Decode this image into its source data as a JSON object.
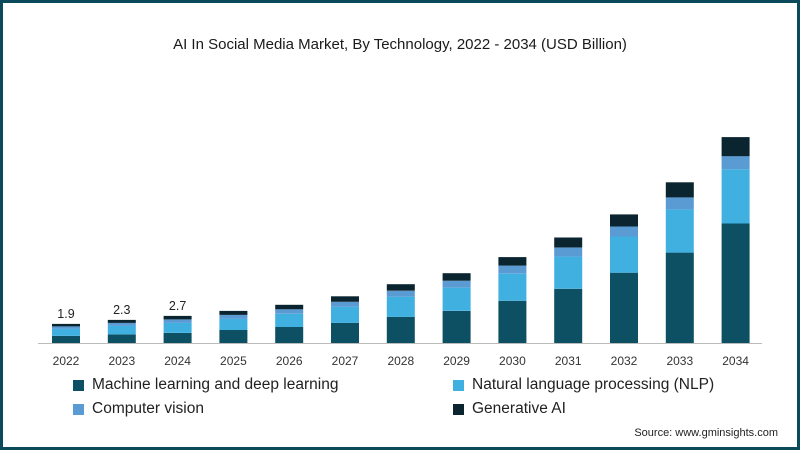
{
  "chart_data": {
    "type": "bar",
    "stacked": true,
    "title": "AI In Social Media Market, By Technology, 2022 - 2034 (USD Billion)",
    "categories": [
      "2022",
      "2023",
      "2024",
      "2025",
      "2026",
      "2027",
      "2028",
      "2029",
      "2030",
      "2031",
      "2032",
      "2033",
      "2034"
    ],
    "series": [
      {
        "name": "Machine learning and deep learning",
        "color": "#0d4f63",
        "values": [
          0.7,
          0.85,
          1.0,
          1.3,
          1.6,
          2.0,
          2.6,
          3.2,
          4.2,
          5.4,
          7.0,
          9.0,
          11.9
        ]
      },
      {
        "name": "Natural language processing (NLP)",
        "color": "#3fb0e0",
        "values": [
          0.7,
          0.85,
          1.0,
          1.1,
          1.3,
          1.6,
          2.0,
          2.3,
          2.7,
          3.2,
          3.6,
          4.3,
          5.4
        ]
      },
      {
        "name": "Computer vision",
        "color": "#5a9bd4",
        "values": [
          0.25,
          0.3,
          0.35,
          0.4,
          0.45,
          0.5,
          0.6,
          0.7,
          0.8,
          0.9,
          1.0,
          1.2,
          1.3
        ]
      },
      {
        "name": "Generative AI",
        "color": "#0b2530",
        "values": [
          0.25,
          0.3,
          0.35,
          0.4,
          0.45,
          0.55,
          0.65,
          0.75,
          0.85,
          1.0,
          1.2,
          1.5,
          1.9
        ]
      }
    ],
    "data_labels": [
      {
        "category": "2022",
        "text": "1.9"
      },
      {
        "category": "2023",
        "text": "2.3"
      },
      {
        "category": "2024",
        "text": "2.7"
      }
    ],
    "ylim": [
      0,
      21.6
    ],
    "xlabel": "",
    "ylabel": "",
    "grid": false,
    "legend_position": "bottom"
  },
  "source": "Source: www.gminsights.com",
  "colors": {
    "border": "#0b4a5a",
    "axis": "#bbbbbb"
  }
}
